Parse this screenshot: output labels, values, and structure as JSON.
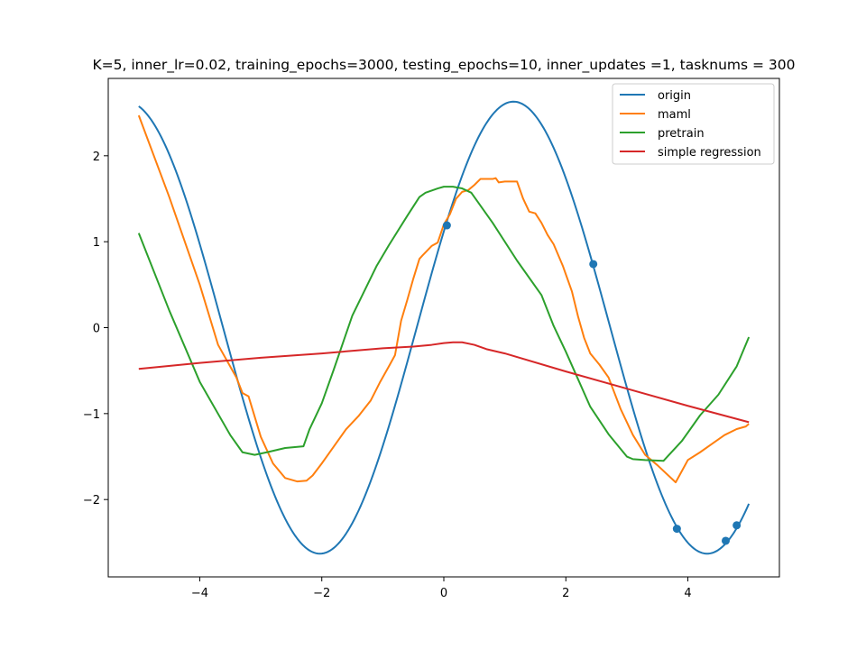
{
  "chart_data": {
    "type": "line",
    "title": "K=5, inner_lr=0.02, training_epochs=3000, testing_epochs=10, inner_updates =1, tasknums = 300",
    "xlabel": "",
    "ylabel": "",
    "xlim": [
      -5.5,
      5.5
    ],
    "ylim": [
      -2.9,
      2.9
    ],
    "xticks": [
      -4,
      -2,
      0,
      2,
      4
    ],
    "yticks": [
      -2,
      -1,
      0,
      1,
      2
    ],
    "xtick_labels": [
      "−4",
      "−2",
      "0",
      "2",
      "4"
    ],
    "ytick_labels": [
      "−2",
      "−1",
      "0",
      "1",
      "2"
    ],
    "grid": false,
    "legend_position": "top-right",
    "series": [
      {
        "name": "origin",
        "color": "#1f77b4",
        "function": {
          "amplitude": 2.63,
          "frequency": 0.99,
          "phase": 0.44
        },
        "x_range": [
          -5,
          5
        ]
      },
      {
        "name": "maml",
        "color": "#ff7f0e",
        "x": [
          -5,
          -4.5,
          -4,
          -3.7,
          -3.4,
          -3.3,
          -3.2,
          -3,
          -2.8,
          -2.6,
          -2.4,
          -2.25,
          -2.15,
          -2,
          -1.8,
          -1.6,
          -1.4,
          -1.2,
          -1.05,
          -0.9,
          -0.8,
          -0.7,
          -0.6,
          -0.5,
          -0.4,
          -0.35,
          -0.2,
          -0.1,
          0,
          0.1,
          0.2,
          0.3,
          0.4,
          0.5,
          0.6,
          0.7,
          0.8,
          0.85,
          0.9,
          1,
          1.2,
          1.3,
          1.4,
          1.5,
          1.6,
          1.7,
          1.8,
          1.95,
          2,
          2.1,
          2.2,
          2.3,
          2.4,
          2.55,
          2.7,
          2.9,
          3.1,
          3.3,
          3.5,
          3.8,
          4,
          4.2,
          4.4,
          4.6,
          4.8,
          4.95,
          5
        ],
        "y": [
          2.47,
          1.52,
          0.5,
          -0.2,
          -0.58,
          -0.76,
          -0.8,
          -1.27,
          -1.58,
          -1.75,
          -1.79,
          -1.78,
          -1.72,
          -1.58,
          -1.38,
          -1.18,
          -1.03,
          -0.85,
          -0.64,
          -0.45,
          -0.32,
          0.08,
          0.32,
          0.57,
          0.8,
          0.84,
          0.95,
          0.99,
          1.2,
          1.32,
          1.5,
          1.58,
          1.6,
          1.66,
          1.73,
          1.73,
          1.73,
          1.74,
          1.69,
          1.7,
          1.7,
          1.5,
          1.35,
          1.33,
          1.22,
          1.08,
          0.97,
          0.72,
          0.62,
          0.42,
          0.13,
          -0.12,
          -0.3,
          -0.43,
          -0.58,
          -0.95,
          -1.25,
          -1.48,
          -1.6,
          -1.8,
          -1.54,
          -1.45,
          -1.35,
          -1.25,
          -1.18,
          -1.15,
          -1.12
        ]
      },
      {
        "name": "pretrain",
        "color": "#2ca02c",
        "x": [
          -5,
          -4.5,
          -4,
          -3.5,
          -3.3,
          -3.1,
          -2.9,
          -2.6,
          -2.3,
          -2.2,
          -2,
          -1.8,
          -1.5,
          -1.1,
          -0.9,
          -0.6,
          -0.4,
          -0.3,
          -0.1,
          0,
          0.15,
          0.3,
          0.45,
          0.8,
          1.2,
          1.6,
          1.8,
          2,
          2.4,
          2.7,
          3,
          3.1,
          3.3,
          3.6,
          3.9,
          4.2,
          4.5,
          4.8,
          5
        ],
        "y": [
          1.1,
          0.2,
          -0.63,
          -1.25,
          -1.45,
          -1.48,
          -1.45,
          -1.4,
          -1.38,
          -1.18,
          -0.88,
          -0.48,
          0.14,
          0.72,
          0.96,
          1.3,
          1.52,
          1.57,
          1.62,
          1.64,
          1.64,
          1.62,
          1.57,
          1.22,
          0.78,
          0.38,
          0.02,
          -0.28,
          -0.92,
          -1.24,
          -1.5,
          -1.53,
          -1.54,
          -1.55,
          -1.32,
          -1.02,
          -0.78,
          -0.45,
          -0.11
        ]
      },
      {
        "name": "simple regression",
        "color": "#d62728",
        "x": [
          -5,
          -4,
          -3,
          -2,
          -1,
          -0.5,
          -0.2,
          0,
          0.15,
          0.3,
          0.5,
          0.7,
          1,
          2,
          3,
          4,
          5
        ],
        "y": [
          -0.48,
          -0.41,
          -0.35,
          -0.3,
          -0.24,
          -0.22,
          -0.2,
          -0.18,
          -0.17,
          -0.17,
          -0.2,
          -0.25,
          -0.3,
          -0.51,
          -0.71,
          -0.91,
          -1.1
        ]
      }
    ],
    "sample_points": {
      "color": "#1f77b4",
      "x": [
        0.05,
        2.45,
        3.82,
        4.62,
        4.8
      ],
      "y": [
        1.19,
        0.74,
        -2.34,
        -2.48,
        -2.3
      ]
    }
  }
}
